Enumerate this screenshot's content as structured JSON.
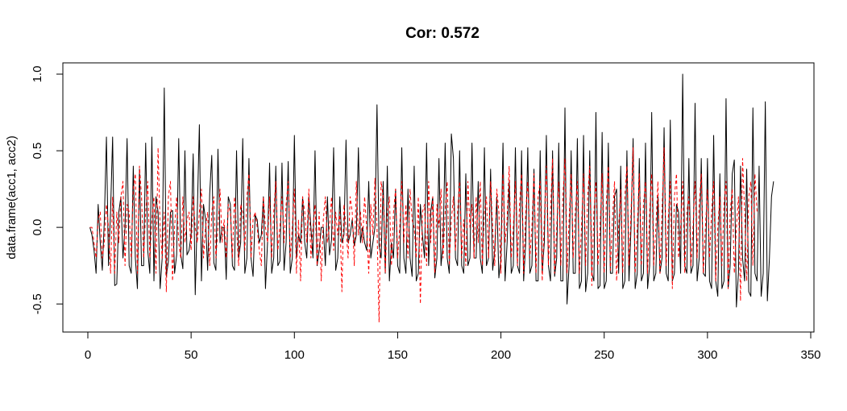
{
  "chart_data": {
    "type": "line",
    "title": "Cor: 0.572",
    "xlabel": "",
    "ylabel": "data.frame(acc1, acc2)",
    "xlim": [
      0,
      350
    ],
    "ylim": [
      -0.62,
      1.0
    ],
    "x_ticks": [
      0,
      50,
      100,
      150,
      200,
      250,
      300,
      350
    ],
    "y_ticks": [
      -0.5,
      0.0,
      0.5,
      1.0
    ],
    "x_tick_labels": [
      "0",
      "50",
      "100",
      "150",
      "200",
      "250",
      "300",
      "350"
    ],
    "y_tick_labels": [
      "-0.5",
      "0.0",
      "0.5",
      "1.0"
    ],
    "grid": false,
    "legend": "none",
    "x_start": 1,
    "series": [
      {
        "color": "#000000",
        "line_style": "solid",
        "values": [
          0.0,
          -0.05,
          -0.15,
          -0.3,
          0.15,
          -0.1,
          -0.28,
          0.05,
          0.59,
          -0.25,
          0.1,
          0.59,
          -0.38,
          -0.37,
          0.1,
          0.2,
          -0.2,
          0.0,
          0.58,
          -0.25,
          -0.3,
          0.4,
          -0.2,
          -0.4,
          0.38,
          -0.25,
          -0.25,
          0.55,
          -0.15,
          -0.3,
          0.59,
          -0.35,
          0.2,
          0.1,
          -0.4,
          -0.2,
          0.91,
          -0.32,
          -0.22,
          0.1,
          0.11,
          -0.3,
          -0.18,
          0.58,
          -0.18,
          -0.27,
          0.5,
          -0.18,
          -0.15,
          -0.05,
          0.48,
          -0.44,
          0.1,
          0.67,
          -0.35,
          0.15,
          0.05,
          -0.28,
          0.22,
          0.47,
          -0.23,
          -0.28,
          0.51,
          -0.1,
          0.0,
          0.0,
          -0.34,
          0.2,
          0.15,
          -0.25,
          -0.28,
          0.5,
          -0.2,
          -0.1,
          0.58,
          -0.3,
          -0.2,
          0.45,
          -0.2,
          -0.32,
          0.08,
          0.05,
          -0.1,
          -0.05,
          0.2,
          -0.4,
          -0.1,
          0.42,
          -0.3,
          -0.2,
          0.4,
          -0.25,
          -0.22,
          0.42,
          -0.28,
          -0.1,
          0.43,
          -0.3,
          -0.2,
          0.6,
          -0.2,
          -0.05,
          -0.1,
          0.2,
          -0.1,
          -0.2,
          0.2,
          0.0,
          -0.2,
          0.5,
          -0.25,
          -0.15,
          0.0,
          0.0,
          -0.25,
          0.2,
          -0.18,
          -0.08,
          0.52,
          -0.28,
          -0.2,
          0.2,
          -0.1,
          -0.05,
          0.57,
          -0.1,
          -0.05,
          0.05,
          -0.12,
          -0.05,
          0.52,
          -0.1,
          0.0,
          -0.1,
          -0.15,
          0.3,
          -0.2,
          -0.1,
          0.0,
          0.8,
          -0.12,
          -0.2,
          0.3,
          -0.3,
          0.4,
          -0.35,
          -0.1,
          -0.2,
          0.25,
          -0.25,
          -0.3,
          0.52,
          -0.2,
          -0.3,
          0.25,
          -0.2,
          -0.32,
          0.4,
          -0.35,
          -0.3,
          0.15,
          -0.05,
          -0.2,
          0.55,
          -0.25,
          0.1,
          0.2,
          -0.33,
          -0.2,
          0.45,
          -0.25,
          -0.1,
          0.55,
          -0.2,
          -0.3,
          0.61,
          0.45,
          -0.2,
          -0.25,
          0.5,
          -0.25,
          -0.3,
          0.35,
          -0.25,
          -0.2,
          0.55,
          -0.2,
          -0.2,
          0.3,
          -0.2,
          -0.3,
          0.52,
          -0.25,
          -0.2,
          0.38,
          -0.28,
          -0.15,
          0.2,
          -0.33,
          -0.2,
          0.55,
          -0.35,
          -0.1,
          0.3,
          -0.3,
          -0.25,
          0.52,
          -0.25,
          -0.3,
          0.5,
          -0.35,
          -0.1,
          0.52,
          -0.3,
          -0.25,
          0.38,
          -0.35,
          -0.35,
          0.5,
          -0.3,
          -0.1,
          0.6,
          -0.25,
          -0.35,
          0.5,
          -0.32,
          -0.2,
          0.55,
          -0.35,
          -0.35,
          0.78,
          -0.5,
          -0.25,
          0.5,
          -0.3,
          -0.3,
          0.58,
          -0.4,
          -0.35,
          0.6,
          -0.42,
          -0.3,
          0.5,
          -0.3,
          -0.35,
          0.75,
          -0.4,
          -0.38,
          0.62,
          -0.4,
          -0.35,
          0.55,
          -0.3,
          -0.3,
          0.2,
          0.25,
          -0.3,
          0.4,
          -0.4,
          -0.35,
          0.5,
          -0.35,
          0.0,
          0.58,
          -0.4,
          -0.3,
          0.45,
          -0.35,
          -0.3,
          0.55,
          -0.4,
          -0.25,
          0.75,
          -0.35,
          -0.3,
          0.2,
          -0.3,
          -0.2,
          0.65,
          -0.3,
          -0.35,
          0.7,
          -0.35,
          -0.3,
          0.15,
          0.1,
          -0.3,
          1.0,
          -0.25,
          -0.3,
          0.45,
          -0.3,
          -0.25,
          0.81,
          -0.35,
          -0.2,
          0.45,
          -0.3,
          -0.32,
          0.45,
          -0.35,
          -0.4,
          0.6,
          -0.35,
          -0.45,
          0.35,
          -0.4,
          -0.35,
          0.84,
          -0.4,
          -0.25,
          0.35,
          0.44,
          -0.52,
          -0.3,
          0.4,
          -0.2,
          -0.35,
          0.38,
          -0.42,
          -0.45,
          0.78,
          -0.3,
          -0.35,
          0.4,
          -0.45,
          -0.3,
          0.82,
          -0.48,
          -0.2,
          0.2,
          0.3
        ]
      },
      {
        "color": "#ff0000",
        "line_style": "dashed",
        "values": [
          0.0,
          0.0,
          -0.1,
          -0.2,
          0.05,
          0.1,
          -0.2,
          -0.1,
          0.15,
          0.0,
          -0.3,
          0.2,
          -0.3,
          0.1,
          -0.1,
          0.2,
          0.3,
          -0.25,
          0.15,
          0.1,
          -0.2,
          0.25,
          0.35,
          -0.3,
          0.4,
          0.2,
          -0.2,
          0.1,
          0.3,
          -0.2,
          0.05,
          0.2,
          -0.3,
          0.52,
          0.0,
          -0.2,
          0.1,
          -0.42,
          0.2,
          0.3,
          -0.35,
          0.0,
          0.2,
          -0.1,
          -0.2,
          0.2,
          -0.1,
          0.05,
          0.1,
          -0.15,
          0.2,
          0.0,
          -0.1,
          0.1,
          0.25,
          -0.2,
          0.0,
          0.1,
          -0.25,
          0.1,
          0.2,
          -0.2,
          0.0,
          0.25,
          -0.1,
          0.05,
          -0.2,
          0.15,
          0.1,
          -0.2,
          0.2,
          0.0,
          -0.25,
          0.15,
          0.1,
          -0.15,
          0.2,
          0.35,
          -0.2,
          0.05,
          0.1,
          0.0,
          -0.15,
          -0.25,
          0.2,
          0.0,
          -0.1,
          0.2,
          -0.2,
          0.1,
          0.3,
          -0.15,
          0.0,
          0.2,
          -0.1,
          0.15,
          0.3,
          -0.2,
          0.0,
          0.25,
          -0.3,
          0.05,
          -0.35,
          0.2,
          0.1,
          -0.1,
          0.25,
          -0.2,
          0.0,
          0.15,
          -0.25,
          0.1,
          -0.35,
          0.05,
          0.2,
          -0.1,
          0.0,
          0.2,
          -0.15,
          0.1,
          -0.05,
          0.1,
          -0.42,
          0.15,
          0.0,
          -0.2,
          0.2,
          0.1,
          -0.25,
          0.3,
          -0.05,
          0.1,
          -0.1,
          0.2,
          0.0,
          -0.3,
          0.15,
          -0.05,
          0.32,
          0.0,
          -0.62,
          0.3,
          0.2,
          -0.3,
          0.1,
          0.2,
          -0.25,
          0.1,
          0.25,
          -0.2,
          0.0,
          0.3,
          -0.1,
          0.15,
          -0.2,
          0.25,
          0.05,
          0.0,
          -0.2,
          0.2,
          -0.5,
          0.1,
          0.15,
          -0.25,
          0.3,
          -0.1,
          0.2,
          -0.3,
          0.15,
          0.0,
          0.25,
          -0.2,
          0.1,
          0.3,
          -0.25,
          0.05,
          0.2,
          -0.15,
          0.1,
          0.3,
          -0.2,
          0.05,
          -0.25,
          0.3,
          0.0,
          0.15,
          -0.2,
          0.2,
          -0.1,
          0.3,
          -0.25,
          0.1,
          0.2,
          -0.2,
          0.3,
          0.0,
          -0.25,
          0.25,
          0.1,
          -0.3,
          0.35,
          -0.1,
          0.05,
          0.4,
          -0.2,
          0.0,
          0.3,
          -0.25,
          0.15,
          0.35,
          -0.3,
          0.1,
          0.3,
          -0.2,
          0.0,
          0.35,
          -0.3,
          0.2,
          0.3,
          -0.35,
          0.05,
          0.4,
          -0.25,
          0.1,
          0.45,
          -0.3,
          0.0,
          0.3,
          -0.25,
          0.2,
          0.45,
          -0.3,
          0.05,
          0.35,
          -0.2,
          0.1,
          0.3,
          -0.3,
          0.0,
          0.35,
          -0.25,
          0.2,
          0.4,
          -0.38,
          0.1,
          0.3,
          -0.25,
          0.0,
          0.35,
          -0.3,
          0.15,
          0.4,
          -0.28,
          0.05,
          0.3,
          -0.35,
          0.0,
          0.25,
          -0.3,
          0.2,
          0.4,
          -0.25,
          0.1,
          0.52,
          -0.3,
          0.0,
          0.35,
          -0.25,
          0.15,
          0.3,
          -0.3,
          0.1,
          0.35,
          -0.25,
          0.0,
          0.3,
          -0.3,
          0.1,
          0.52,
          -0.25,
          0.05,
          0.3,
          -0.4,
          0.2,
          0.35,
          -0.2,
          0.0,
          0.3,
          -0.3,
          0.1,
          0.2,
          -0.25,
          0.0,
          0.3,
          -0.2,
          0.15,
          0.35,
          -0.3,
          0.0,
          0.25,
          -0.2,
          0.1,
          0.3,
          -0.35,
          0.0,
          0.2,
          -0.25,
          0.15,
          0.3,
          -0.4,
          0.1,
          0.25,
          -0.3,
          0.0,
          0.2,
          -0.48,
          0.45,
          0.1,
          -0.35,
          0.2,
          0.3,
          -0.25,
          0.35,
          0.1
        ]
      }
    ]
  }
}
